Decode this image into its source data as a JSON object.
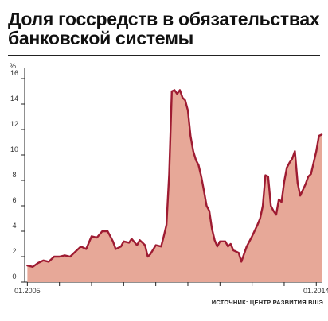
{
  "title": {
    "line1": "Доля госсредств в обязательствах",
    "line2": "банковской системы"
  },
  "source": "ИСТОЧНИК: ЦЕНТР РАЗВИТИЯ ВШЭ",
  "colors": {
    "line": "#9e1b32",
    "fill": "#e7a898",
    "axis": "#222222"
  },
  "chart_data": {
    "type": "area",
    "title": "Доля госсредств в обязательствах банковской системы",
    "ylabel": "%",
    "ylim": [
      0,
      16
    ],
    "yticks": [
      0,
      2,
      4,
      6,
      8,
      10,
      12,
      14,
      16
    ],
    "ytick_labels": [
      "0",
      "2",
      "4",
      "6",
      "8",
      "10",
      "12",
      "14",
      "16"
    ],
    "x_range": [
      "2004-12",
      "2014-03"
    ],
    "xtick_labels": [
      {
        "date": "2005-01",
        "label": "01.2005"
      },
      {
        "date": "2014-01",
        "label": "01.2014"
      }
    ],
    "series": [
      {
        "points": [
          [
            "2005-01",
            1.3
          ],
          [
            "2005-03",
            1.2
          ],
          [
            "2005-05",
            1.5
          ],
          [
            "2005-07",
            1.7
          ],
          [
            "2005-09",
            1.6
          ],
          [
            "2005-11",
            2.0
          ],
          [
            "2006-01",
            2.0
          ],
          [
            "2006-03",
            2.1
          ],
          [
            "2006-05",
            2.0
          ],
          [
            "2006-07",
            2.4
          ],
          [
            "2006-09",
            2.8
          ],
          [
            "2006-11",
            2.6
          ],
          [
            "2007-01",
            3.6
          ],
          [
            "2007-03",
            3.5
          ],
          [
            "2007-05",
            4.0
          ],
          [
            "2007-07",
            4.0
          ],
          [
            "2007-09",
            3.2
          ],
          [
            "2007-10",
            2.6
          ],
          [
            "2007-12",
            2.8
          ],
          [
            "2008-01",
            3.2
          ],
          [
            "2008-03",
            3.1
          ],
          [
            "2008-04",
            3.4
          ],
          [
            "2008-06",
            2.9
          ],
          [
            "2008-07",
            3.3
          ],
          [
            "2008-08",
            3.1
          ],
          [
            "2008-09",
            2.9
          ],
          [
            "2008-10",
            2.0
          ],
          [
            "2008-11",
            2.2
          ],
          [
            "2009-01",
            2.9
          ],
          [
            "2009-03",
            2.8
          ],
          [
            "2009-04",
            3.6
          ],
          [
            "2009-05",
            4.5
          ],
          [
            "2009-06",
            8.5
          ],
          [
            "2009-07",
            15.0
          ],
          [
            "2009-08",
            15.1
          ],
          [
            "2009-09",
            14.8
          ],
          [
            "2009-10",
            15.1
          ],
          [
            "2009-11",
            14.5
          ],
          [
            "2009-12",
            14.3
          ],
          [
            "2010-01",
            13.5
          ],
          [
            "2010-02",
            11.5
          ],
          [
            "2010-03",
            10.3
          ],
          [
            "2010-04",
            9.6
          ],
          [
            "2010-05",
            9.2
          ],
          [
            "2010-06",
            8.3
          ],
          [
            "2010-07",
            7.2
          ],
          [
            "2010-08",
            6.0
          ],
          [
            "2010-09",
            5.6
          ],
          [
            "2010-10",
            4.2
          ],
          [
            "2010-11",
            3.3
          ],
          [
            "2010-12",
            2.8
          ],
          [
            "2011-01",
            3.2
          ],
          [
            "2011-03",
            3.2
          ],
          [
            "2011-04",
            2.8
          ],
          [
            "2011-05",
            3.0
          ],
          [
            "2011-06",
            2.5
          ],
          [
            "2011-08",
            2.3
          ],
          [
            "2011-09",
            1.6
          ],
          [
            "2011-10",
            2.2
          ],
          [
            "2011-11",
            2.8
          ],
          [
            "2012-01",
            3.6
          ],
          [
            "2012-03",
            4.5
          ],
          [
            "2012-04",
            5.0
          ],
          [
            "2012-05",
            6.0
          ],
          [
            "2012-06",
            8.4
          ],
          [
            "2012-07",
            8.3
          ],
          [
            "2012-08",
            6.0
          ],
          [
            "2012-09",
            5.6
          ],
          [
            "2012-10",
            5.3
          ],
          [
            "2012-11",
            6.5
          ],
          [
            "2012-12",
            6.3
          ],
          [
            "2013-01",
            7.9
          ],
          [
            "2013-02",
            9.0
          ],
          [
            "2013-03",
            9.4
          ],
          [
            "2013-04",
            9.7
          ],
          [
            "2013-05",
            10.3
          ],
          [
            "2013-06",
            7.8
          ],
          [
            "2013-07",
            6.8
          ],
          [
            "2013-09",
            7.7
          ],
          [
            "2013-10",
            8.3
          ],
          [
            "2013-11",
            8.5
          ],
          [
            "2014-01",
            10.3
          ],
          [
            "2014-02",
            11.5
          ],
          [
            "2014-03",
            11.6
          ]
        ]
      }
    ],
    "grid": false,
    "legend": "none"
  }
}
